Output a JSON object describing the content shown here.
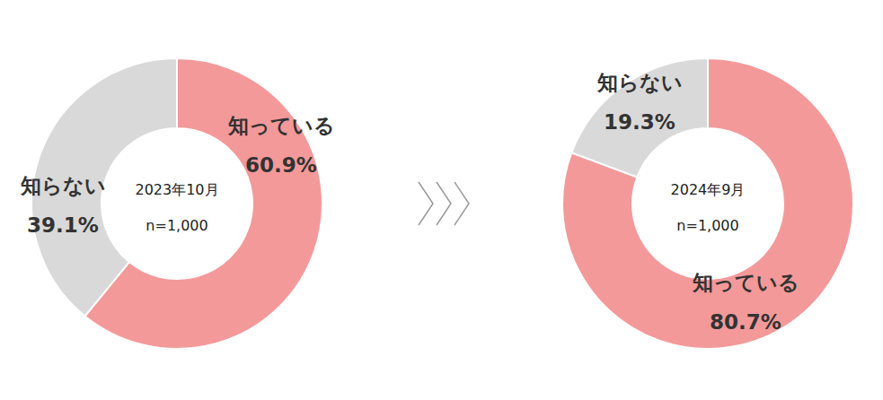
{
  "chart_data": [
    {
      "type": "pie",
      "title": "2023年10月",
      "subtitle": "n=1,000",
      "categories": [
        "知っている",
        "知らない"
      ],
      "values": [
        60.9,
        39.1
      ],
      "value_labels": [
        "60.9%",
        "39.1%"
      ],
      "data_labels": true,
      "colors": [
        "#f4999a",
        "#d9d9d9"
      ]
    },
    {
      "type": "pie",
      "title": "2024年9月",
      "subtitle": "n=1,000",
      "categories": [
        "知っている",
        "知らない"
      ],
      "values": [
        80.7,
        19.3
      ],
      "value_labels": [
        "80.7%",
        "19.3%"
      ],
      "data_labels": true,
      "colors": [
        "#f4999a",
        "#d9d9d9"
      ]
    }
  ]
}
